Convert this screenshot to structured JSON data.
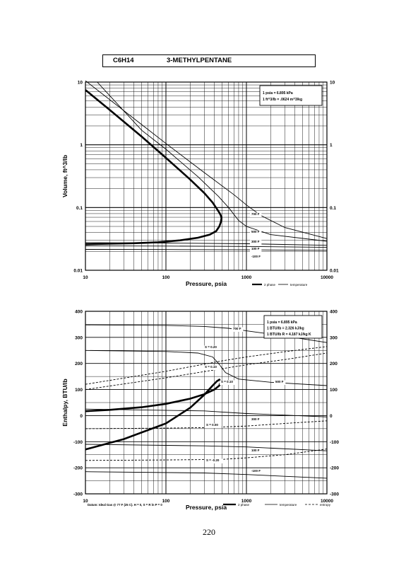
{
  "header": {
    "formula": "C6H14",
    "name": "3-METHYLPENTANE"
  },
  "page_number": "220",
  "chart_data": [
    {
      "type": "line",
      "xscale": "log",
      "yscale": "log",
      "xlabel": "Pressure,  psia",
      "ylabel": "Volume,  ft^3/lb",
      "xlim": [
        10,
        10000
      ],
      "ylim": [
        0.01,
        10
      ],
      "xticks": [
        "10",
        "100",
        "1000",
        "10000"
      ],
      "yticks_left": [
        "10",
        "1",
        "0.1",
        "0.01"
      ],
      "yticks_right": [
        "10",
        "1",
        "0.1",
        "0.01"
      ],
      "info_box": [
        "1 psia = 6.895 kPa",
        "1 ft^3/lb = .0624 m^3/kg"
      ],
      "legend": [
        "2 phase",
        "temperature"
      ],
      "series": [
        {
          "name": "2 phase",
          "points": [
            [
              10,
              7.5
            ],
            [
              20,
              3.6
            ],
            [
              50,
              1.35
            ],
            [
              100,
              0.62
            ],
            [
              200,
              0.28
            ],
            [
              300,
              0.17
            ],
            [
              380,
              0.12
            ],
            [
              430,
              0.095
            ],
            [
              460,
              0.083
            ],
            [
              480,
              0.075
            ],
            [
              490,
              0.068
            ],
            [
              480,
              0.058
            ],
            [
              460,
              0.05
            ],
            [
              420,
              0.042
            ],
            [
              350,
              0.037
            ],
            [
              250,
              0.033
            ],
            [
              150,
              0.03
            ],
            [
              80,
              0.028
            ],
            [
              40,
              0.027
            ],
            [
              20,
              0.0265
            ],
            [
              10,
              0.026
            ]
          ]
        },
        {
          "name": "700 F",
          "points": [
            [
              10,
              10.5
            ],
            [
              50,
              2.1
            ],
            [
              100,
              1.05
            ],
            [
              300,
              0.36
            ],
            [
              700,
              0.16
            ],
            [
              1000,
              0.11
            ],
            [
              1500,
              0.075
            ],
            [
              3000,
              0.048
            ],
            [
              10000,
              0.032
            ]
          ]
        },
        {
          "name": "500 F",
          "points": [
            [
              14,
              10
            ],
            [
              50,
              1.7
            ],
            [
              100,
              0.85
            ],
            [
              250,
              0.31
            ],
            [
              450,
              0.15
            ],
            [
              600,
              0.1
            ],
            [
              800,
              0.062
            ],
            [
              1000,
              0.05
            ],
            [
              2000,
              0.037
            ],
            [
              10000,
              0.029
            ]
          ]
        },
        {
          "name": "300 F",
          "points": [
            [
              10,
              0.0275
            ],
            [
              100,
              0.0272
            ],
            [
              1000,
              0.0265
            ],
            [
              10000,
              0.025
            ]
          ]
        },
        {
          "name": "100 F",
          "points": [
            [
              10,
              0.0245
            ],
            [
              100,
              0.0243
            ],
            [
              1000,
              0.024
            ],
            [
              10000,
              0.0232
            ]
          ]
        },
        {
          "name": "-100 F",
          "points": [
            [
              10,
              0.0215
            ],
            [
              100,
              0.0214
            ],
            [
              1000,
              0.0212
            ],
            [
              10000,
              0.0208
            ]
          ]
        }
      ],
      "annotations": [
        "700 F",
        "500 F",
        "300 F",
        "100 F",
        "-100 F"
      ]
    },
    {
      "type": "line",
      "xscale": "log",
      "yscale": "linear",
      "xlabel": "Pressure,  psia",
      "ylabel": "Enthalpy,  BTU/lb",
      "xlim": [
        10,
        10000
      ],
      "ylim": [
        -300,
        400
      ],
      "xticks": [
        "10",
        "100",
        "1000",
        "10000"
      ],
      "yticks": [
        "400",
        "300",
        "200",
        "100",
        "0",
        "-100",
        "-200",
        "-300"
      ],
      "info_box": [
        "1 psia = 6.895 kPa",
        "1 BTU/lb = 2.326 kJ/kg",
        "1 BTU/lb R = 4.187 kJ/kg K"
      ],
      "legend": [
        "2 phase",
        "temperature",
        "entropy"
      ],
      "footnote": "Datum: Ideal Gas @ 77 F (25 C).  H = 0,  S = R ln P = 0",
      "series": [
        {
          "name": "2 phase",
          "points": [
            [
              10,
              -130
            ],
            [
              30,
              -90
            ],
            [
              100,
              -30
            ],
            [
              200,
              30
            ],
            [
              300,
              80
            ],
            [
              380,
              115
            ],
            [
              430,
              132
            ],
            [
              460,
              138
            ],
            [
              480,
              130
            ],
            [
              460,
              115
            ],
            [
              400,
              100
            ],
            [
              300,
              82
            ],
            [
              200,
              65
            ],
            [
              100,
              45
            ],
            [
              50,
              32
            ],
            [
              20,
              22
            ],
            [
              10,
              17
            ]
          ]
        },
        {
          "name": "700 F",
          "points": [
            [
              10,
              348
            ],
            [
              100,
              346
            ],
            [
              300,
              342
            ],
            [
              600,
              335
            ],
            [
              1000,
              325
            ],
            [
              3000,
              305
            ],
            [
              10000,
              280
            ]
          ]
        },
        {
          "name": "500 F",
          "points": [
            [
              10,
              250
            ],
            [
              100,
              246
            ],
            [
              250,
              240
            ],
            [
              380,
              225
            ],
            [
              450,
              200
            ],
            [
              550,
              165
            ],
            [
              800,
              140
            ],
            [
              2000,
              128
            ],
            [
              10000,
              115
            ]
          ]
        },
        {
          "name": "300 F",
          "points": [
            [
              10,
              25
            ],
            [
              300,
              18
            ],
            [
              1000,
              8
            ],
            [
              3000,
              2
            ],
            [
              10000,
              -5
            ]
          ]
        },
        {
          "name": "100 F",
          "points": [
            [
              10,
              -110
            ],
            [
              300,
              -116
            ],
            [
              1000,
              -120
            ],
            [
              10000,
              -135
            ]
          ]
        },
        {
          "name": "-100 F",
          "points": [
            [
              10,
              -215
            ],
            [
              300,
              -220
            ],
            [
              1000,
              -226
            ],
            [
              10000,
              -240
            ]
          ]
        },
        {
          "name": "S = 0.20",
          "points": [
            [
              10,
              120
            ],
            [
              100,
              170
            ],
            [
              500,
              210
            ],
            [
              1000,
              225
            ],
            [
              3000,
              245
            ],
            [
              10000,
              265
            ]
          ]
        },
        {
          "name": "S = 0.10",
          "points": [
            [
              10,
              100
            ],
            [
              100,
              145
            ],
            [
              500,
              180
            ],
            [
              1000,
              195
            ],
            [
              3000,
              215
            ],
            [
              10000,
              240
            ]
          ]
        },
        {
          "name": "S = 0.00",
          "points": [
            [
              10,
              -50
            ],
            [
              100,
              -48
            ],
            [
              300,
              -46
            ],
            [
              1000,
              -40
            ],
            [
              3000,
              -30
            ],
            [
              10000,
              -20
            ]
          ]
        },
        {
          "name": "S = -0.20",
          "points": [
            [
              10,
              -172
            ],
            [
              100,
              -170
            ],
            [
              500,
              -168
            ],
            [
              1000,
              -162
            ],
            [
              3000,
              -150
            ],
            [
              10000,
              -128
            ]
          ]
        }
      ],
      "annotations": [
        "700 F",
        "500 F",
        "300 F",
        "100 F",
        "-100 F",
        "S = 0.20",
        "S = 0.10",
        "S = 0.10",
        "S = 0.00",
        "S = -0.20"
      ]
    }
  ]
}
